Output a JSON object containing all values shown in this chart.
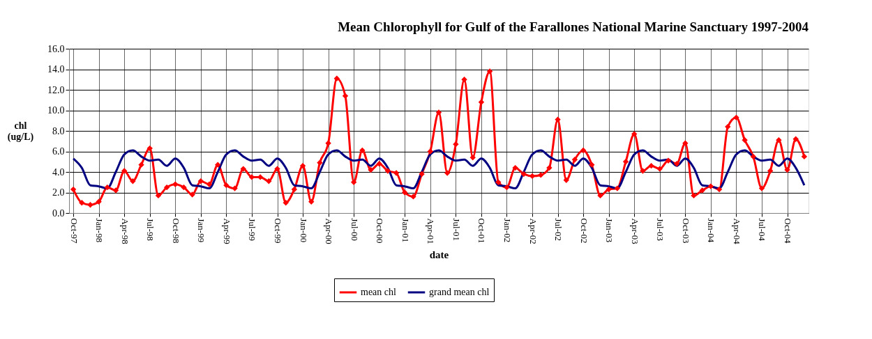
{
  "chart_data": {
    "type": "line",
    "title": "Mean Chlorophyll for Gulf of the Farallones National Marine Sanctuary 1997-2004",
    "xlabel": "date",
    "ylabel": "chl\n(ug/L)",
    "categories": [
      "Oct-97",
      null,
      null,
      "Jan-98",
      null,
      null,
      "Apr-98",
      null,
      null,
      "Jul-98",
      null,
      null,
      "Oct-98",
      null,
      null,
      "Jan-99",
      null,
      null,
      "Apr-99",
      null,
      null,
      "Jul-99",
      null,
      null,
      "Oct-99",
      null,
      null,
      "Jan-00",
      null,
      null,
      "Apr-00",
      null,
      null,
      "Jul-00",
      null,
      null,
      "Oct-00",
      null,
      null,
      "Jan-01",
      null,
      null,
      "Apr-01",
      null,
      null,
      "Jul-01",
      null,
      null,
      "Oct-01",
      null,
      null,
      "Jan-02",
      null,
      null,
      "Apr-02",
      null,
      null,
      "Jul-02",
      null,
      null,
      "Oct-02",
      null,
      null,
      "Jan-03",
      null,
      null,
      "Apr-03",
      null,
      null,
      "Jul-03",
      null,
      null,
      "Oct-03",
      null,
      null,
      "Jan-04",
      null,
      null,
      "Apr-04",
      null,
      null,
      "Jul-04",
      null,
      null,
      "Oct-04",
      null,
      null
    ],
    "series": [
      {
        "name": "mean chl",
        "color": "#ff0000",
        "marker": "diamond",
        "values": [
          2.3,
          1.0,
          0.8,
          1.1,
          2.5,
          2.2,
          4.1,
          3.1,
          4.7,
          6.3,
          1.7,
          2.5,
          2.8,
          2.5,
          1.8,
          3.1,
          2.8,
          4.7,
          2.7,
          2.4,
          4.3,
          3.5,
          3.5,
          3.1,
          4.3,
          1.0,
          2.3,
          4.6,
          1.1,
          4.9,
          6.8,
          13.1,
          11.4,
          3.0,
          6.1,
          4.2,
          4.8,
          4.1,
          3.9,
          2.0,
          1.6,
          3.8,
          6.0,
          9.8,
          3.9,
          6.7,
          13.0,
          5.4,
          10.8,
          13.8,
          3.0,
          2.5,
          4.4,
          3.8,
          3.6,
          3.7,
          4.4,
          9.1,
          3.2,
          5.2,
          6.1,
          4.7,
          1.7,
          2.3,
          2.4,
          5.0,
          7.7,
          4.1,
          4.6,
          4.3,
          5.1,
          4.8,
          6.8,
          1.7,
          2.2,
          2.6,
          2.3,
          8.4,
          9.3,
          7.1,
          5.5,
          2.4,
          4.1,
          7.1,
          4.2,
          7.2,
          5.5
        ]
      },
      {
        "name": "grand mean chl",
        "color": "#000080",
        "marker": "none",
        "values": [
          5.3,
          4.4,
          2.7,
          2.6,
          2.4,
          4.0,
          5.7,
          6.1,
          5.5,
          5.1,
          5.2,
          4.6,
          5.3,
          4.4,
          2.7,
          2.6,
          2.4,
          4.0,
          5.7,
          6.1,
          5.5,
          5.1,
          5.2,
          4.6,
          5.3,
          4.4,
          2.7,
          2.6,
          2.4,
          4.0,
          5.7,
          6.1,
          5.5,
          5.1,
          5.2,
          4.6,
          5.3,
          4.4,
          2.7,
          2.6,
          2.4,
          4.0,
          5.7,
          6.1,
          5.5,
          5.1,
          5.2,
          4.6,
          5.3,
          4.4,
          2.7,
          2.6,
          2.4,
          4.0,
          5.7,
          6.1,
          5.5,
          5.1,
          5.2,
          4.6,
          5.3,
          4.4,
          2.7,
          2.6,
          2.4,
          4.0,
          5.7,
          6.1,
          5.5,
          5.1,
          5.2,
          4.6,
          5.3,
          4.4,
          2.7,
          2.6,
          2.4,
          4.0,
          5.7,
          6.1,
          5.5,
          5.1,
          5.2,
          4.6,
          5.3,
          4.4,
          2.7
        ]
      }
    ],
    "ylim": [
      0,
      16
    ],
    "yticks": [
      {
        "value": 0,
        "label": "0.0"
      },
      {
        "value": 2,
        "label": "2.0"
      },
      {
        "value": 4,
        "label": "4.0"
      },
      {
        "value": 6,
        "label": "6.0"
      },
      {
        "value": 8,
        "label": "8.0"
      },
      {
        "value": 10,
        "label": "10.0"
      },
      {
        "value": 12,
        "label": "12.0"
      },
      {
        "value": 14,
        "label": "14.0"
      },
      {
        "value": 16,
        "label": "16.0"
      }
    ],
    "grid": true,
    "legend": "bottom"
  }
}
